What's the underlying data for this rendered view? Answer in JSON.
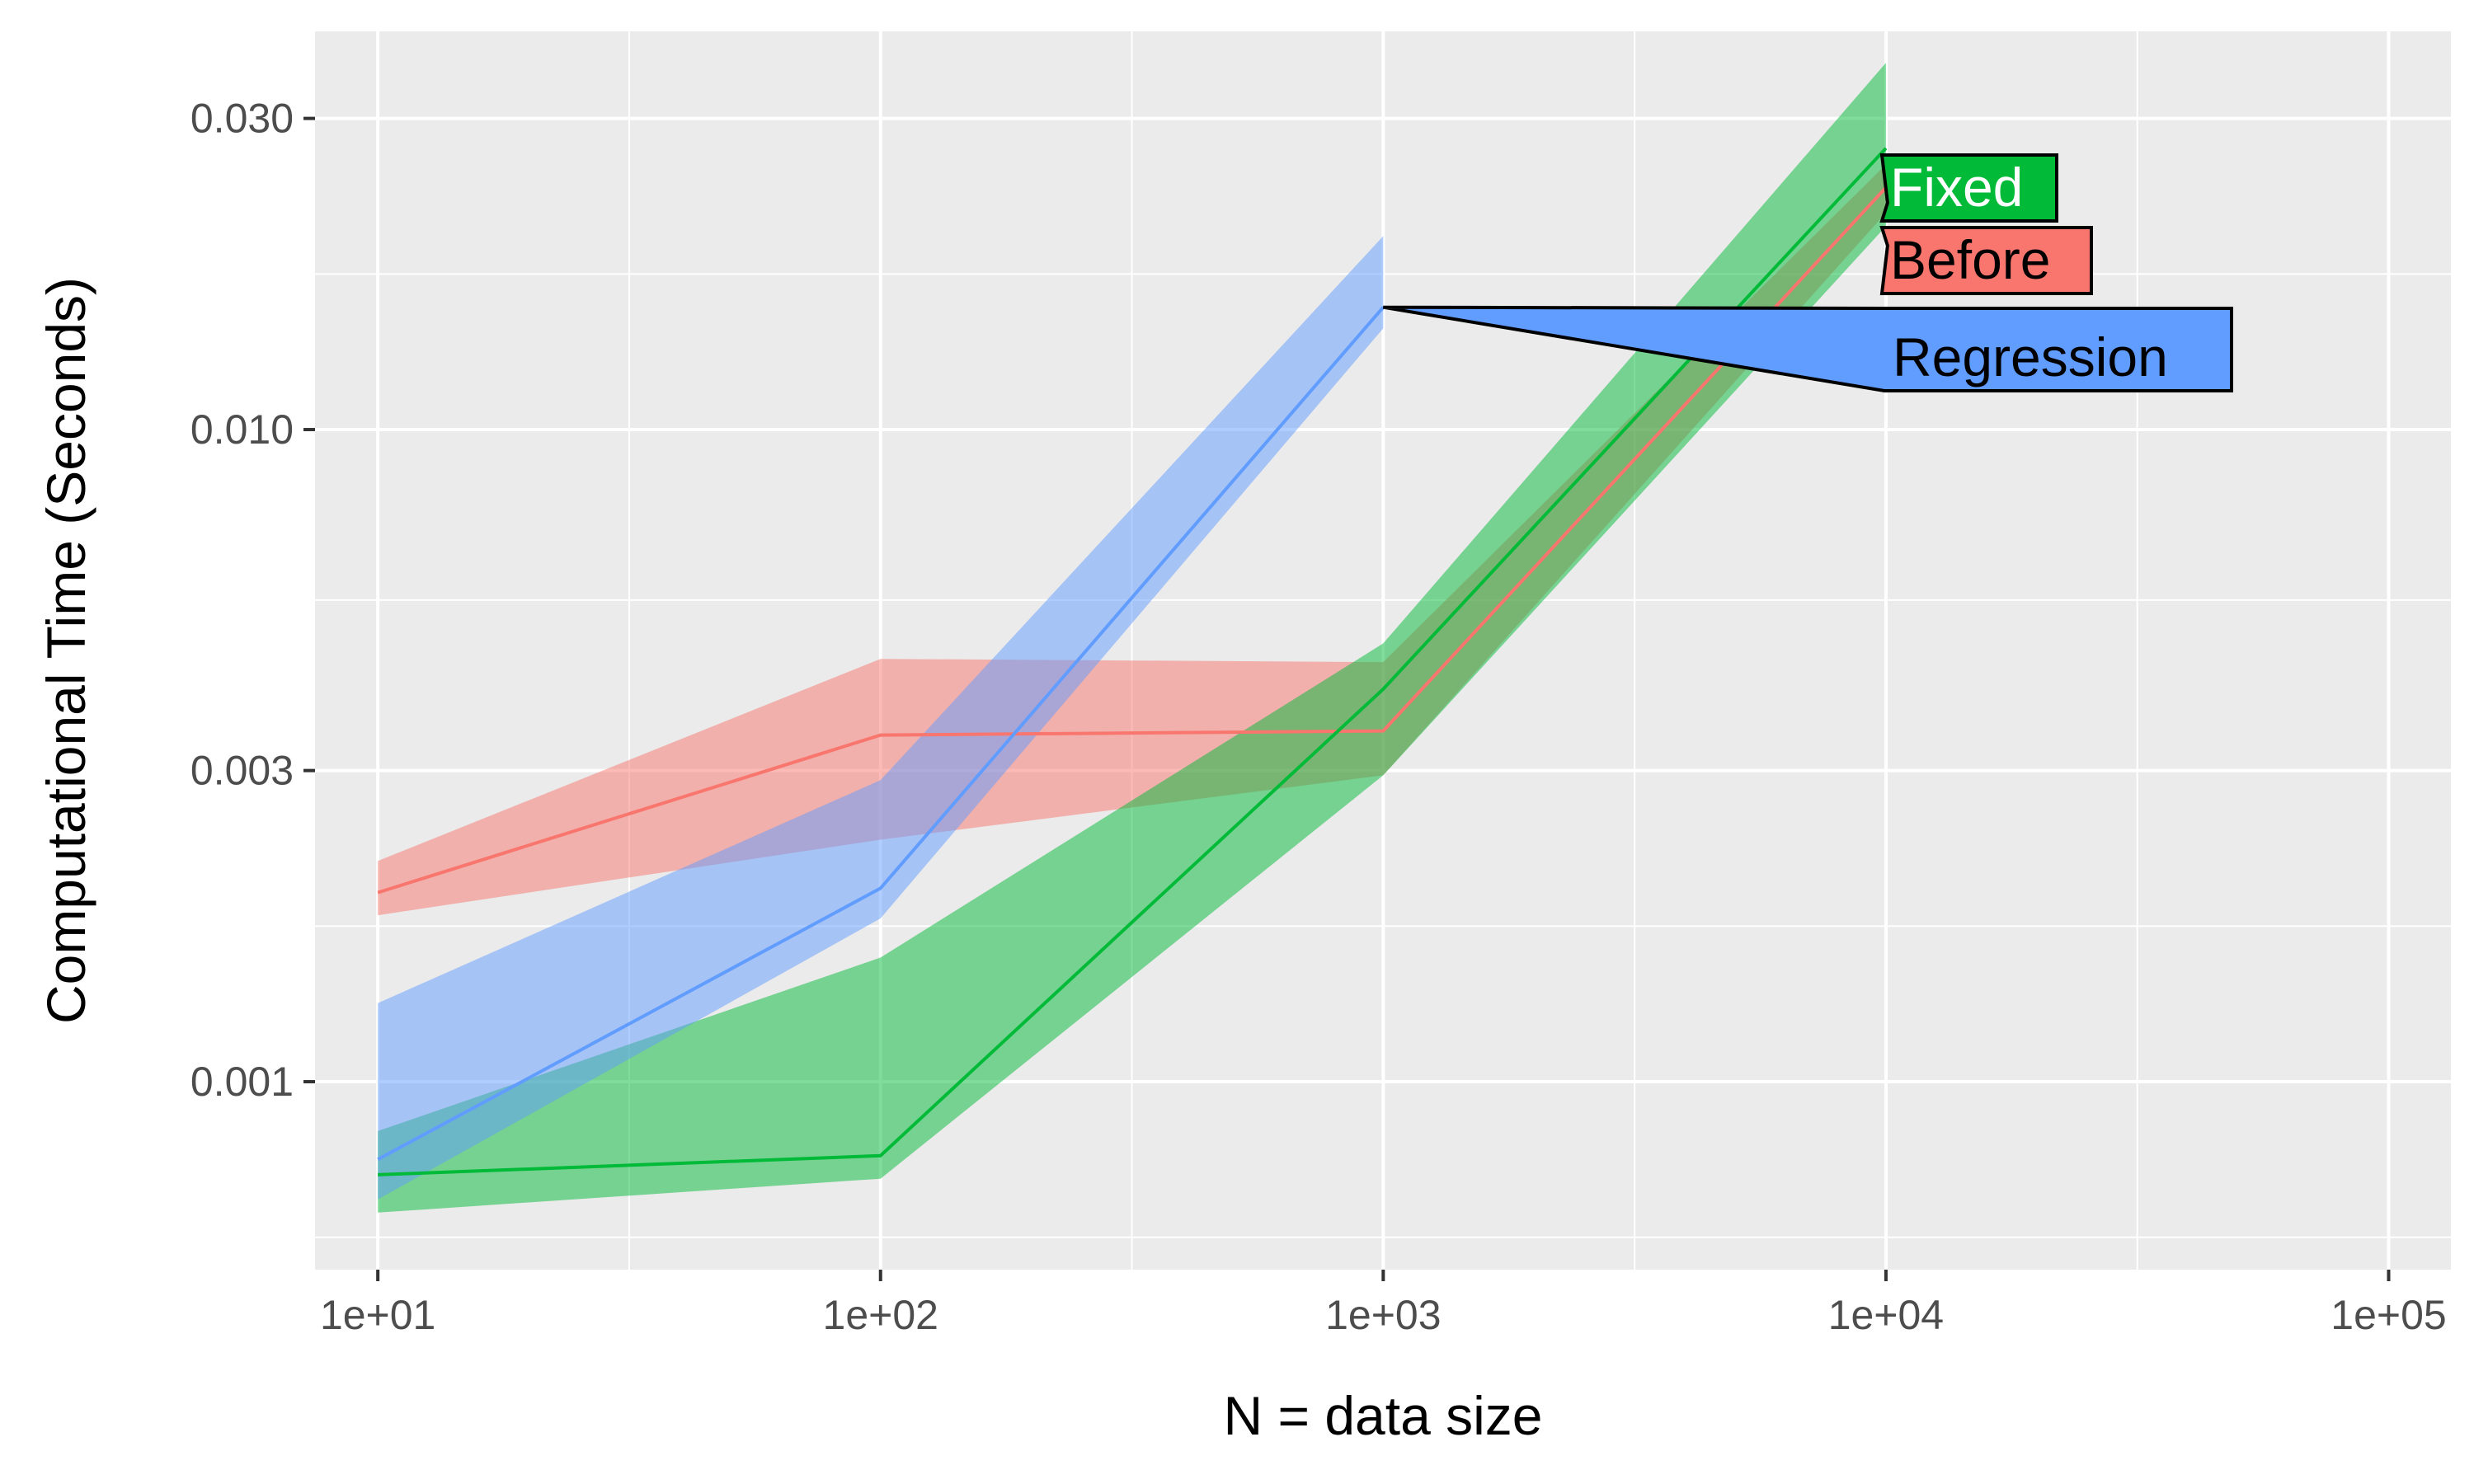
{
  "chart_data": {
    "type": "line",
    "title": "",
    "xlabel": "N = data size",
    "ylabel": "Computational Time (Seconds)",
    "x_scale": "log10",
    "y_scale": "log10",
    "xlim": [
      7.5,
      133000
    ],
    "ylim": [
      0.000515,
      0.0408
    ],
    "x_ticks": [
      10,
      100,
      1000,
      10000,
      100000
    ],
    "x_tick_labels": [
      "1e+01",
      "1e+02",
      "1e+03",
      "1e+04",
      "1e+05"
    ],
    "y_ticks": [
      0.001,
      0.003,
      0.01,
      0.03
    ],
    "y_tick_labels": [
      "0.001",
      "0.003",
      "0.010",
      "0.030"
    ],
    "grid": true,
    "background": "#ebebeb",
    "series": [
      {
        "name": "Before",
        "color": "#f8766d",
        "x": [
          10,
          100,
          1000,
          10000
        ],
        "y": [
          0.00195,
          0.0034,
          0.00345,
          0.0235
        ],
        "lower": [
          0.0018,
          0.00235,
          0.00295,
          0.0215
        ],
        "upper": [
          0.00218,
          0.00445,
          0.0044,
          0.0255
        ]
      },
      {
        "name": "Fixed",
        "color": "#00ba38",
        "x": [
          10,
          100,
          1000,
          10000
        ],
        "y": [
          0.00072,
          0.00077,
          0.004,
          0.027
        ],
        "lower": [
          0.00063,
          0.00071,
          0.00295,
          0.0205
        ],
        "upper": [
          0.00084,
          0.00155,
          0.0047,
          0.0365
        ]
      },
      {
        "name": "Regression",
        "color": "#619cff",
        "x": [
          10,
          100,
          1000
        ],
        "y": [
          0.00076,
          0.00198,
          0.0154
        ],
        "lower": [
          0.00066,
          0.00178,
          0.0143
        ],
        "upper": [
          0.00132,
          0.0029,
          0.0198
        ]
      }
    ],
    "labels": [
      "Fixed",
      "Before",
      "Regression"
    ]
  }
}
